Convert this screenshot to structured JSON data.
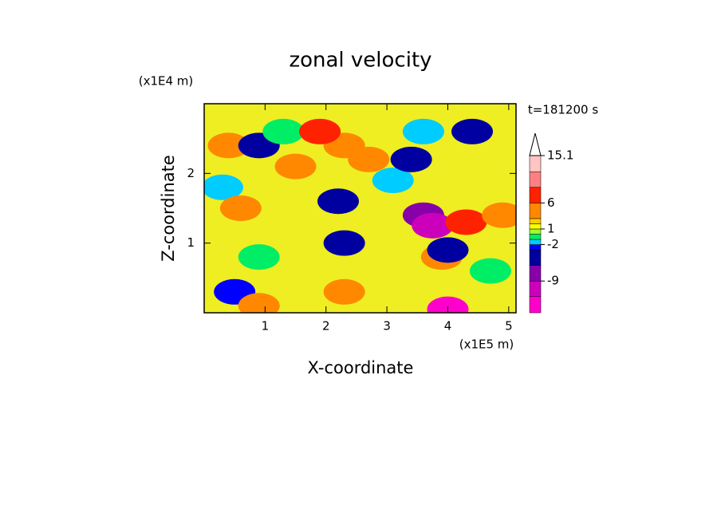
{
  "chart_data": {
    "type": "contour",
    "title": "zonal velocity",
    "xlabel": "X-coordinate",
    "ylabel": "Z-coordinate",
    "xunit": "(x1E5 m)",
    "yunit": "(x1E4 m)",
    "annotation": "t=181200 s",
    "xlim": [
      0,
      5.12
    ],
    "xticks": [
      1,
      2,
      3,
      4,
      5
    ],
    "ylim": [
      0,
      3
    ],
    "yticks": [
      1,
      2
    ],
    "colorbar": {
      "levels": [
        -15.1,
        -12,
        -9,
        -6,
        -3,
        -2,
        -1,
        0,
        1,
        2,
        3,
        6,
        9,
        12,
        15.1
      ],
      "colors": [
        "#ff00cc",
        "#cc00bb",
        "#8800aa",
        "#0000a0",
        "#0000ff",
        "#00ccff",
        "#00ee66",
        "#99ff33",
        "#ffff00",
        "#ffcc00",
        "#ff8800",
        "#ff2200",
        "#ff8080",
        "#ffc4c4"
      ],
      "ticks": [
        15.1,
        6,
        1,
        -2,
        -9
      ]
    },
    "blobs": [
      {
        "x": 0.4,
        "y": 2.4,
        "value": 4
      },
      {
        "x": 0.9,
        "y": 2.4,
        "value": -5
      },
      {
        "x": 0.3,
        "y": 1.8,
        "value": -1.5
      },
      {
        "x": 0.6,
        "y": 1.5,
        "value": 4
      },
      {
        "x": 0.9,
        "y": 0.8,
        "value": -0.5
      },
      {
        "x": 1.3,
        "y": 2.6,
        "value": -0.5
      },
      {
        "x": 1.5,
        "y": 2.1,
        "value": 4
      },
      {
        "x": 0.5,
        "y": 0.3,
        "value": -2.5
      },
      {
        "x": 0.9,
        "y": 0.1,
        "value": 4
      },
      {
        "x": 2.3,
        "y": 2.4,
        "value": 5
      },
      {
        "x": 2.2,
        "y": 1.6,
        "value": -6
      },
      {
        "x": 2.3,
        "y": 1.0,
        "value": -5
      },
      {
        "x": 2.3,
        "y": 0.3,
        "value": 5
      },
      {
        "x": 1.9,
        "y": 2.6,
        "value": 8
      },
      {
        "x": 2.7,
        "y": 2.2,
        "value": 4
      },
      {
        "x": 3.1,
        "y": 1.9,
        "value": -1.5
      },
      {
        "x": 3.4,
        "y": 2.2,
        "value": -6
      },
      {
        "x": 3.6,
        "y": 2.6,
        "value": -1.5
      },
      {
        "x": 3.6,
        "y": 1.4,
        "value": -8
      },
      {
        "x": 3.75,
        "y": 1.25,
        "value": -11
      },
      {
        "x": 4.3,
        "y": 1.3,
        "value": 8
      },
      {
        "x": 3.9,
        "y": 0.8,
        "value": 5
      },
      {
        "x": 4.9,
        "y": 1.4,
        "value": 4
      },
      {
        "x": 4.4,
        "y": 2.6,
        "value": -5
      },
      {
        "x": 4.0,
        "y": 0.9,
        "value": -6
      },
      {
        "x": 4.0,
        "y": 0.05,
        "value": -13
      },
      {
        "x": 4.7,
        "y": 0.6,
        "value": -0.5
      }
    ]
  }
}
